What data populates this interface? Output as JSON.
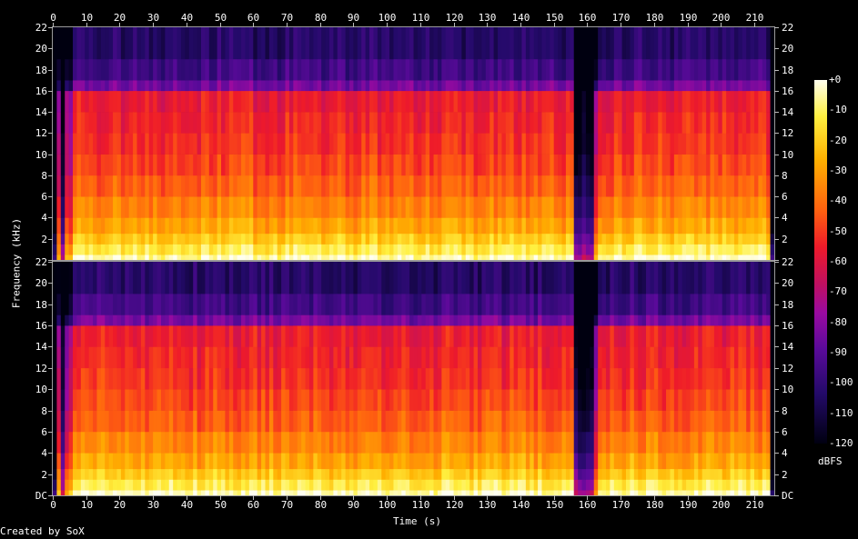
{
  "chart_data": {
    "type": "heatmap",
    "subtype": "spectrogram",
    "channels": 2,
    "xlabel": "Time (s)",
    "ylabel": "Frequency (kHz)",
    "xlim": [
      0,
      216
    ],
    "x_ticks": [
      0,
      10,
      20,
      30,
      40,
      50,
      60,
      70,
      80,
      90,
      100,
      110,
      120,
      130,
      140,
      150,
      160,
      170,
      180,
      190,
      200,
      210
    ],
    "ylim_khz": [
      0,
      22
    ],
    "y_ticks": [
      "DC",
      "2",
      "4",
      "6",
      "8",
      "10",
      "12",
      "14",
      "16",
      "18",
      "20",
      "22"
    ],
    "y_tick_values": [
      0,
      2,
      4,
      6,
      8,
      10,
      12,
      14,
      16,
      18,
      20,
      22
    ],
    "colorbar": {
      "unit": "dBFS",
      "range": [
        -120,
        0
      ],
      "ticks": [
        "+0",
        "-10",
        "-20",
        "-30",
        "-40",
        "-50",
        "-60",
        "-70",
        "-80",
        "-90",
        "-100",
        "-110",
        "-120"
      ],
      "tick_values": [
        0,
        -10,
        -20,
        -30,
        -40,
        -50,
        -60,
        -70,
        -80,
        -90,
        -100,
        -110,
        -120
      ]
    },
    "features": {
      "lowpass_cutoff_khz": 16,
      "audio_start_s": 1,
      "audio_end_s": 215,
      "quiet_gaps_s": [
        [
          2.5,
          3.5
        ],
        [
          155.5,
          161.5
        ]
      ],
      "low_level_segments_s": [
        [
          0.5,
          6.5
        ],
        [
          162,
          163
        ]
      ]
    },
    "grid": false,
    "legend": "colorbar right"
  },
  "footer": {
    "credit": "Created by SoX"
  },
  "colors": {
    "background": "#000000",
    "text": "#ffffff",
    "palette_high": "#ffffe8",
    "palette_mid": "#e8202a",
    "palette_low": "#2a0a78",
    "palette_floor": "#000008"
  }
}
